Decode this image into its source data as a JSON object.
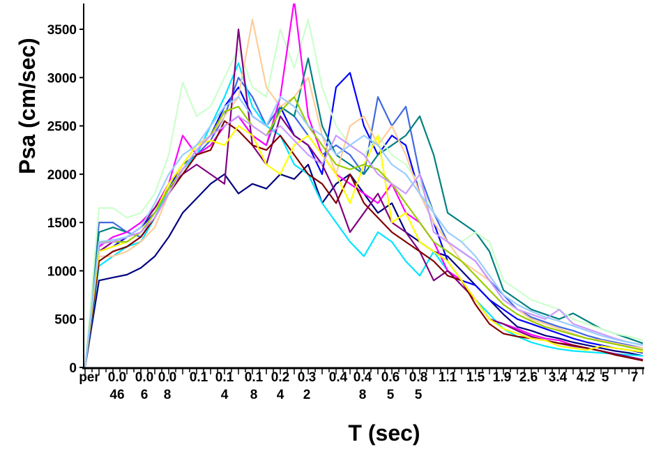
{
  "chart_data": {
    "type": "line",
    "title": "",
    "xlabel": "T (sec)",
    "ylabel": "Psa (cm/sec)",
    "ylim": [
      0,
      3770
    ],
    "yticks": [
      0,
      500,
      1000,
      1500,
      2000,
      2500,
      3000,
      3500
    ],
    "x_axis": "categorical period index 0-40",
    "x_ticks": [
      {
        "label": "per",
        "index": 0.3
      },
      {
        "label": "0.046",
        "index": 2.3
      },
      {
        "label": "0.06",
        "index": 4.25
      },
      {
        "label": "0.08",
        "index": 5.9
      },
      {
        "label": "0.1",
        "index": 8.15
      },
      {
        "label": "0.14",
        "index": 10
      },
      {
        "label": "0.18",
        "index": 12.1
      },
      {
        "label": "0.24",
        "index": 14
      },
      {
        "label": "0.32",
        "index": 15.9
      },
      {
        "label": "0.4",
        "index": 18.15
      },
      {
        "label": "0.48",
        "index": 19.9
      },
      {
        "label": "0.65",
        "index": 21.9
      },
      {
        "label": "0.85",
        "index": 23.9
      },
      {
        "label": "1.1",
        "index": 26
      },
      {
        "label": "1.5",
        "index": 28
      },
      {
        "label": "1.9",
        "index": 29.9
      },
      {
        "label": "2.6",
        "index": 31.8
      },
      {
        "label": "3.4",
        "index": 33.9
      },
      {
        "label": "4.2",
        "index": 35.9
      },
      {
        "label": "5",
        "index": 37.3
      },
      {
        "label": "7",
        "index": 39.4
      }
    ],
    "grid": false,
    "legend": "none",
    "series": [
      {
        "color": "#000080",
        "values": [
          0,
          900,
          930,
          960,
          1030,
          1150,
          1350,
          1600,
          1750,
          1900,
          2000,
          1800,
          1900,
          1850,
          2000,
          1950,
          2100,
          1700,
          1900,
          2000,
          1800,
          1600,
          1700,
          1400,
          1300,
          1200,
          1150,
          1000,
          850,
          700,
          550,
          420,
          380,
          330,
          300,
          260,
          230,
          200,
          170,
          150,
          120
        ]
      },
      {
        "color": "#0000ff",
        "values": [
          0,
          1200,
          1250,
          1350,
          1450,
          1600,
          1850,
          2100,
          2300,
          2400,
          2700,
          2900,
          2600,
          2500,
          2700,
          2400,
          2300,
          2000,
          2900,
          3050,
          2500,
          2200,
          2400,
          2300,
          1800,
          1500,
          1100,
          900,
          850,
          700,
          600,
          500,
          450,
          400,
          350,
          300,
          260,
          230,
          200,
          180,
          150
        ]
      },
      {
        "color": "#4169e1",
        "values": [
          0,
          1500,
          1500,
          1400,
          1350,
          1550,
          1800,
          2050,
          2200,
          2350,
          2600,
          3000,
          2800,
          2500,
          2700,
          2600,
          2400,
          2200,
          2300,
          2200,
          2000,
          2800,
          2500,
          2700,
          2000,
          1600,
          1300,
          1200,
          1100,
          900,
          750,
          600,
          520,
          470,
          420,
          380,
          330,
          290,
          260,
          230,
          200
        ]
      },
      {
        "color": "#008080",
        "values": [
          0,
          1400,
          1450,
          1400,
          1500,
          1650,
          1900,
          2100,
          2200,
          2300,
          2500,
          2600,
          2400,
          2300,
          2700,
          2600,
          3200,
          2500,
          2200,
          2100,
          2000,
          2200,
          2300,
          2400,
          2600,
          2200,
          1600,
          1500,
          1400,
          1200,
          800,
          700,
          600,
          550,
          500,
          560,
          480,
          400,
          350,
          300,
          250
        ]
      },
      {
        "color": "#00e5ff",
        "values": [
          0,
          1050,
          1150,
          1250,
          1300,
          1550,
          1850,
          2050,
          2200,
          2500,
          2800,
          3150,
          2700,
          2500,
          2400,
          2100,
          2000,
          1700,
          1500,
          1300,
          1150,
          1400,
          1300,
          1100,
          950,
          1200,
          1000,
          900,
          700,
          550,
          400,
          320,
          260,
          220,
          190,
          170,
          160,
          150,
          140,
          130,
          120
        ]
      },
      {
        "color": "#ccffcc",
        "values": [
          0,
          1650,
          1650,
          1550,
          1600,
          1800,
          2200,
          2950,
          2600,
          2700,
          3000,
          3300,
          2900,
          2800,
          3500,
          3100,
          3600,
          2900,
          2500,
          2300,
          2200,
          2400,
          2200,
          2100,
          1900,
          1600,
          1400,
          1300,
          1400,
          1300,
          900,
          800,
          700,
          650,
          600,
          500,
          450,
          400,
          350,
          320,
          280
        ]
      },
      {
        "color": "#ffcc99",
        "values": [
          0,
          1150,
          1150,
          1200,
          1300,
          1450,
          1800,
          2100,
          2300,
          2400,
          2600,
          2800,
          3600,
          2900,
          2700,
          2800,
          3000,
          2400,
          2000,
          2500,
          2600,
          2300,
          2500,
          2200,
          1800,
          1500,
          1300,
          1100,
          1000,
          900,
          700,
          600,
          500,
          450,
          400,
          350,
          300,
          280,
          250,
          220,
          200
        ]
      },
      {
        "color": "#ff00ff",
        "values": [
          0,
          1250,
          1350,
          1400,
          1500,
          1650,
          1900,
          2400,
          2200,
          2300,
          2500,
          2600,
          2400,
          2300,
          2800,
          3800,
          2600,
          2200,
          2000,
          1900,
          1800,
          1700,
          1900,
          1600,
          1500,
          1300,
          1000,
          900,
          700,
          500,
          450,
          400,
          340,
          300,
          280,
          230,
          200,
          170,
          140,
          110,
          80
        ]
      },
      {
        "color": "#800080",
        "values": [
          0,
          1200,
          1300,
          1350,
          1450,
          1650,
          1850,
          2000,
          2100,
          2000,
          1900,
          3500,
          2300,
          2100,
          2600,
          2400,
          2300,
          2100,
          1800,
          1400,
          1600,
          1800,
          1500,
          1400,
          1200,
          900,
          1000,
          850,
          700,
          500,
          450,
          380,
          320,
          280,
          250,
          220,
          200,
          170,
          140,
          110,
          80
        ]
      },
      {
        "color": "#800000",
        "values": [
          0,
          1100,
          1200,
          1250,
          1350,
          1550,
          1800,
          2000,
          2200,
          2250,
          2550,
          2450,
          2300,
          2250,
          2400,
          2200,
          2000,
          1900,
          1700,
          2000,
          1700,
          1550,
          1400,
          1300,
          1200,
          1100,
          950,
          900,
          650,
          450,
          350,
          320,
          300,
          280,
          250,
          230,
          200,
          170,
          130,
          100,
          70
        ]
      },
      {
        "color": "#ffff00",
        "values": [
          0,
          1200,
          1250,
          1300,
          1400,
          1600,
          1900,
          2100,
          2300,
          2350,
          2300,
          2500,
          2400,
          2100,
          2000,
          2300,
          2400,
          2200,
          2000,
          1700,
          2100,
          2400,
          1500,
          1600,
          1300,
          1200,
          1100,
          900,
          700,
          500,
          400,
          350,
          300,
          280,
          220,
          200,
          180,
          220,
          200,
          180,
          160
        ]
      },
      {
        "color": "#99cc00",
        "values": [
          0,
          1300,
          1300,
          1300,
          1400,
          1600,
          1850,
          2050,
          2250,
          2400,
          2650,
          2700,
          2500,
          2400,
          2650,
          2800,
          2500,
          2300,
          2100,
          2050,
          2100,
          2050,
          1900,
          1700,
          1500,
          1300,
          1200,
          1100,
          950,
          800,
          650,
          550,
          480,
          420,
          380,
          340,
          300,
          270,
          240,
          210,
          180
        ]
      },
      {
        "color": "#cc99ff",
        "values": [
          0,
          1280,
          1300,
          1350,
          1400,
          1550,
          1800,
          2050,
          2250,
          2400,
          2500,
          2600,
          2500,
          2400,
          2500,
          2350,
          2200,
          2100,
          2400,
          2300,
          2200,
          2000,
          1900,
          1800,
          2000,
          1400,
          1300,
          1200,
          1100,
          900,
          700,
          600,
          550,
          500,
          600,
          450,
          400,
          350,
          300,
          260,
          230
        ]
      },
      {
        "color": "#99ccff",
        "values": [
          0,
          1300,
          1320,
          1350,
          1450,
          1700,
          2000,
          2200,
          2300,
          2500,
          2700,
          2800,
          2600,
          2500,
          2800,
          2700,
          2500,
          2400,
          2200,
          2300,
          2400,
          2300,
          2100,
          2000,
          1800,
          1600,
          1400,
          1300,
          1150,
          950,
          750,
          650,
          580,
          520,
          480,
          430,
          380,
          330,
          290,
          260,
          230
        ]
      }
    ]
  }
}
